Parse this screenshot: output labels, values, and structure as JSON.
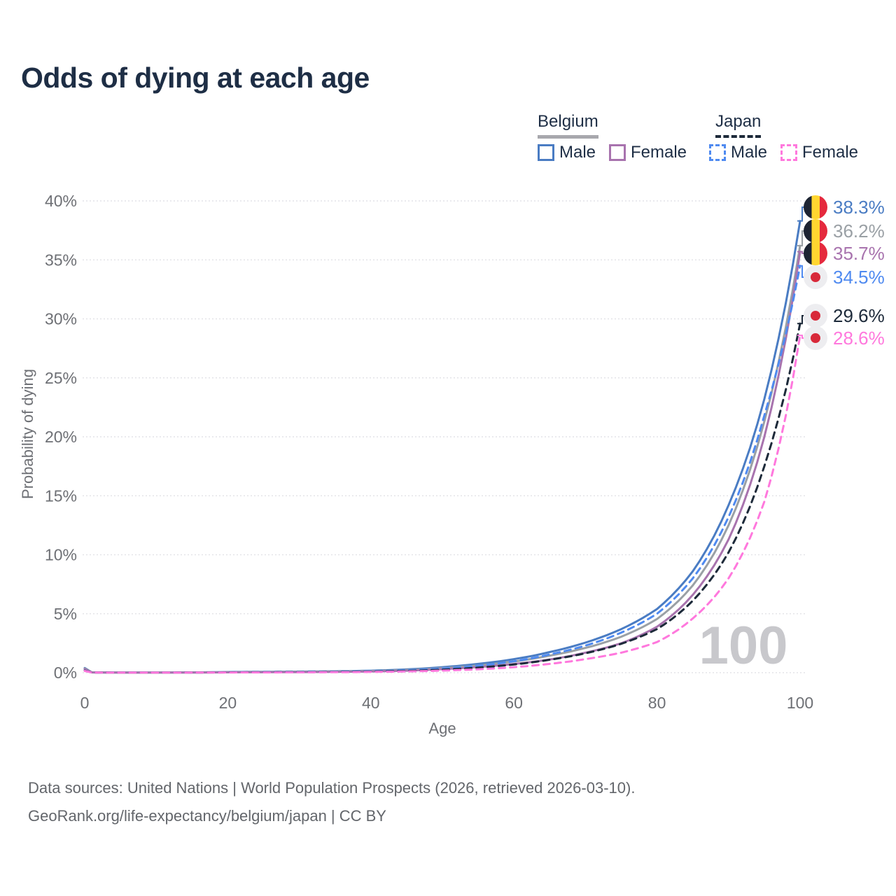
{
  "title": "Odds of dying at each age",
  "legend": {
    "groups": [
      {
        "label": "Belgium",
        "style": "solid",
        "items": [
          {
            "label": "Male",
            "color": "#4a7cc3"
          },
          {
            "label": "Female",
            "color": "#a873ae"
          }
        ]
      },
      {
        "label": "Japan",
        "style": "dashed",
        "items": [
          {
            "label": "Male",
            "color": "#4f8af0"
          },
          {
            "label": "Female",
            "color": "#ff78dd"
          }
        ]
      }
    ]
  },
  "chart_data": {
    "type": "line",
    "title": "Odds of dying at each age",
    "xlabel": "Age",
    "ylabel": "Probability of dying",
    "xlim": [
      0,
      100
    ],
    "ylim": [
      0,
      40
    ],
    "x_tick_values": [
      0,
      20,
      40,
      60,
      80,
      100
    ],
    "x_tick_labels": [
      "0",
      "20",
      "40",
      "60",
      "80",
      "100"
    ],
    "y_tick_values": [
      0,
      5,
      10,
      15,
      20,
      25,
      30,
      35,
      40
    ],
    "y_tick_labels": [
      "0%",
      "5%",
      "10%",
      "15%",
      "20%",
      "25%",
      "30%",
      "35%",
      "40%"
    ],
    "grid": "horizontal-dotted",
    "legend_position": "top-right",
    "watermark": "100",
    "ages": [
      0,
      1,
      5,
      10,
      15,
      20,
      25,
      30,
      35,
      40,
      45,
      50,
      55,
      60,
      65,
      70,
      75,
      80,
      85,
      90,
      95,
      100
    ],
    "series": [
      {
        "name": "Belgium Male",
        "country": "Belgium",
        "sex": "Male",
        "color": "#4a7cc3",
        "dash": false,
        "end_label": "38.3%",
        "end_value": 38.3,
        "values": [
          0.4,
          0.03,
          0.012,
          0.01,
          0.025,
          0.06,
          0.075,
          0.09,
          0.12,
          0.17,
          0.28,
          0.47,
          0.75,
          1.15,
          1.75,
          2.55,
          3.7,
          5.4,
          8.6,
          14.2,
          23.2,
          38.3
        ]
      },
      {
        "name": "Belgium",
        "country": "Belgium",
        "sex": "Both",
        "color": "#9aa0a5",
        "dash": false,
        "end_label": "36.2%",
        "end_value": 36.2,
        "values": [
          0.35,
          0.027,
          0.01,
          0.009,
          0.02,
          0.045,
          0.058,
          0.072,
          0.098,
          0.14,
          0.23,
          0.39,
          0.62,
          0.95,
          1.45,
          2.1,
          3.05,
          4.55,
          7.4,
          12.5,
          21.3,
          36.2
        ]
      },
      {
        "name": "Belgium Female",
        "country": "Belgium",
        "sex": "Female",
        "color": "#a873ae",
        "dash": false,
        "end_label": "35.7%",
        "end_value": 35.7,
        "values": [
          0.3,
          0.023,
          0.009,
          0.008,
          0.014,
          0.03,
          0.038,
          0.05,
          0.07,
          0.105,
          0.175,
          0.3,
          0.48,
          0.74,
          1.12,
          1.7,
          2.5,
          3.9,
          6.6,
          11.3,
          20.0,
          35.7
        ]
      },
      {
        "name": "Japan Male",
        "country": "Japan",
        "sex": "Male",
        "color": "#4f8af0",
        "dash": true,
        "end_label": "34.5%",
        "end_value": 34.5,
        "values": [
          0.19,
          0.02,
          0.008,
          0.007,
          0.017,
          0.042,
          0.052,
          0.062,
          0.085,
          0.125,
          0.21,
          0.36,
          0.6,
          0.97,
          1.55,
          2.3,
          3.4,
          5.0,
          8.0,
          13.2,
          21.8,
          34.5
        ]
      },
      {
        "name": "Japan",
        "country": "Japan",
        "sex": "Both",
        "color": "#1d2a3a",
        "dash": true,
        "end_label": "29.6%",
        "end_value": 29.6,
        "values": [
          0.17,
          0.016,
          0.007,
          0.006,
          0.013,
          0.03,
          0.036,
          0.044,
          0.06,
          0.09,
          0.15,
          0.26,
          0.43,
          0.7,
          1.1,
          1.65,
          2.45,
          3.7,
          6.1,
          10.2,
          17.5,
          29.6
        ]
      },
      {
        "name": "Japan Female",
        "country": "Japan",
        "sex": "Female",
        "color": "#ff78dd",
        "dash": true,
        "end_label": "28.6%",
        "end_value": 28.6,
        "values": [
          0.15,
          0.013,
          0.006,
          0.005,
          0.009,
          0.019,
          0.024,
          0.03,
          0.042,
          0.063,
          0.105,
          0.18,
          0.29,
          0.47,
          0.75,
          1.15,
          1.7,
          2.6,
          4.6,
          8.0,
          14.5,
          28.6
        ]
      }
    ]
  },
  "colors": {
    "title": "#1e2e45",
    "axis_text": "#6e7075",
    "gridline": "#e4e4e8",
    "watermark": "#c8c8cc",
    "belgium_underline": "#a8a8ad",
    "japan_underline": "#1d2a3a",
    "footer_text": "#63666b"
  },
  "footer": {
    "line1": "Data sources: United Nations | World Population Prospects (2026, retrieved 2026-03-10).",
    "line2": "GeoRank.org/life-expectancy/belgium/japan | CC BY"
  }
}
